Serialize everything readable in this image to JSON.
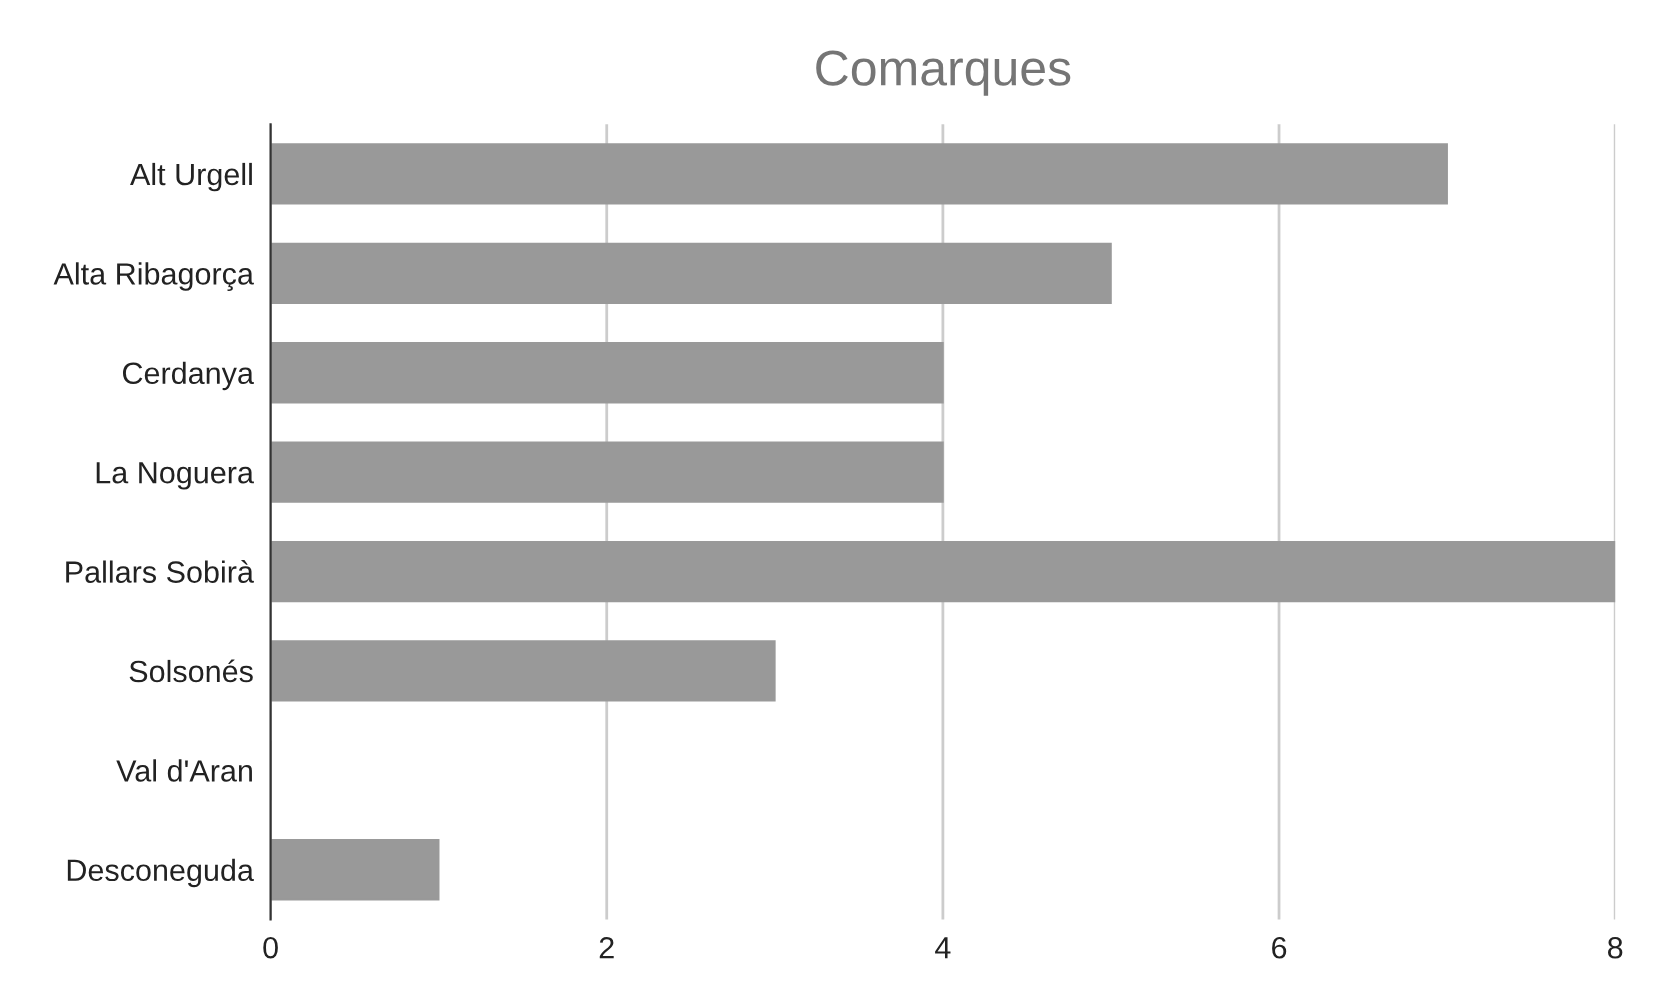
{
  "chart_data": {
    "type": "bar",
    "orientation": "horizontal",
    "title": "Comarques",
    "categories": [
      "Alt Urgell",
      "Alta Ribagorça",
      "Cerdanya",
      "La Noguera",
      "Pallars Sobirà",
      "Solsonés",
      "Val d'Aran",
      "Desconeguda"
    ],
    "values": [
      7,
      5,
      4,
      4,
      8,
      3,
      0,
      1
    ],
    "color": "#999999",
    "xlim": [
      0,
      8
    ],
    "xticks": [
      0,
      2,
      4,
      6,
      8
    ],
    "grid": "x",
    "legend": false
  }
}
